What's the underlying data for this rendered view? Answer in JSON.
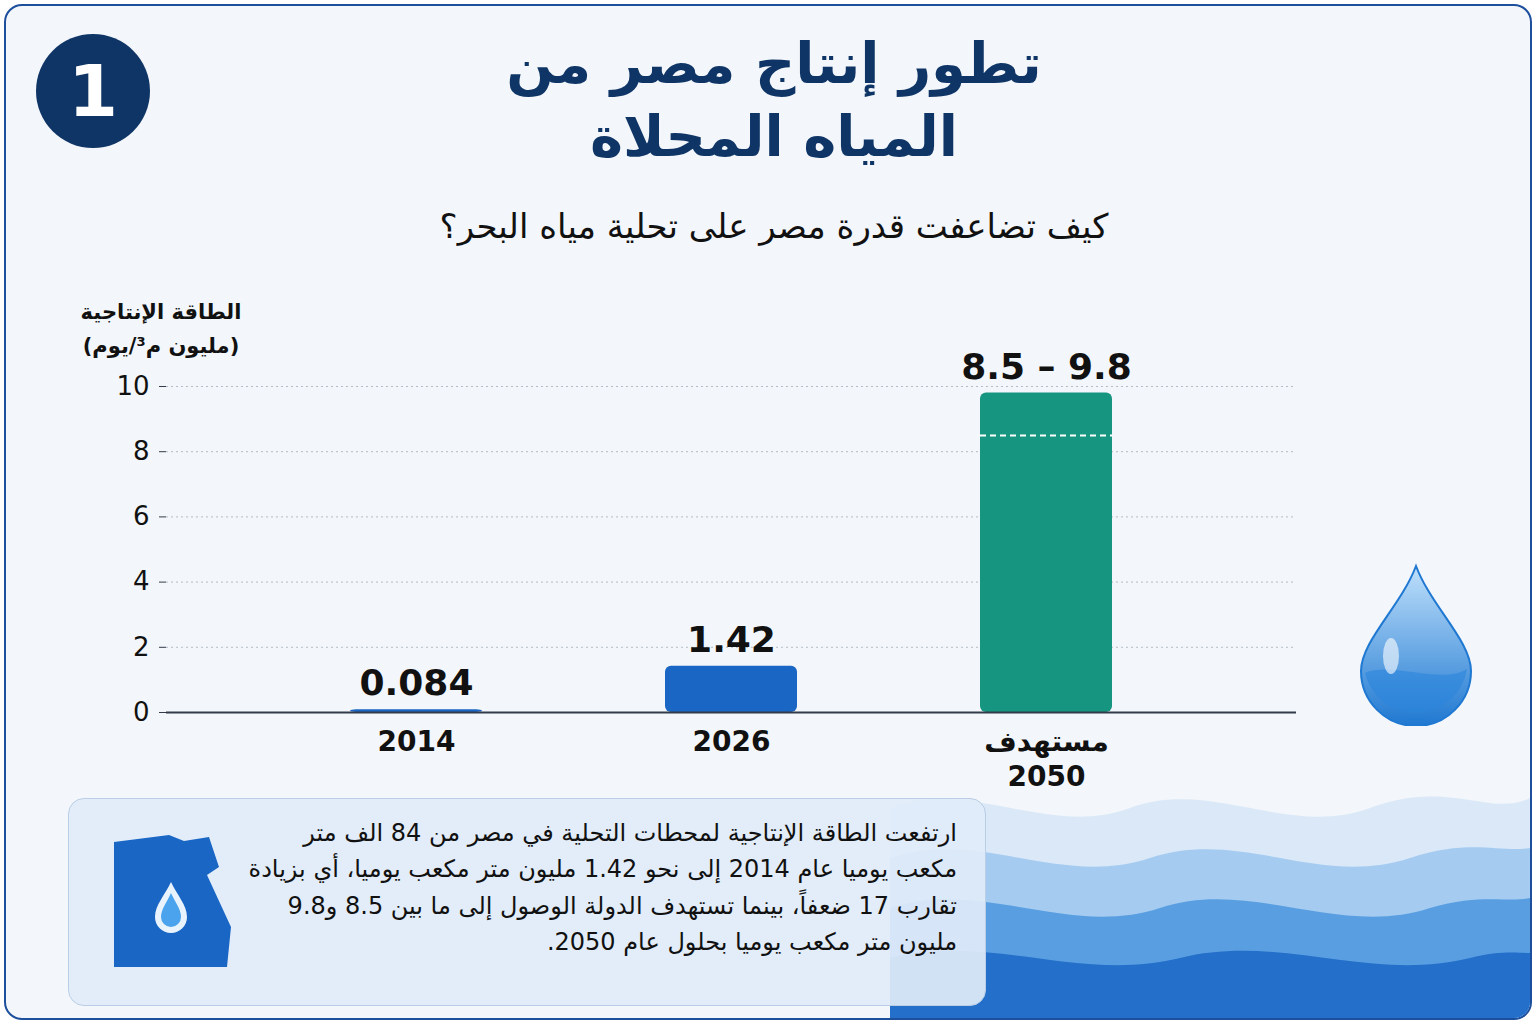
{
  "chart_data": {
    "type": "bar",
    "badge": "1",
    "title": "تطور إنتاج مصر من المياه المحلاة",
    "subtitle": "كيف تضاعفت قدرة مصر على تحلية مياه البحر؟",
    "ylabel": "الطاقة الإنتاجية (مليون م³/يوم)",
    "categories": [
      "2014",
      "2026",
      "مستهدف 2050"
    ],
    "values": [
      0.084,
      1.42,
      9.8
    ],
    "range_low": [
      null,
      null,
      8.5
    ],
    "value_labels": [
      "0.084",
      "1.42",
      "8.5 – 9.8"
    ],
    "colors": [
      "#1a66c4",
      "#1a66c4",
      "#169680"
    ],
    "ylim": [
      0,
      10
    ],
    "yticks": [
      0,
      2,
      4,
      6,
      8,
      10
    ],
    "grid": true,
    "data_labels": true,
    "annotation": "ارتفعت الطاقة الإنتاجية لمحطات التحلية في مصر من 84 الف متر مكعب يوميا عام 2014 إلى نحو 1.42 مليون متر مكعب يوميا، أي بزيادة تقارب 17 ضعفاً، بينما تستهدف الدولة الوصول إلى ما بين 8.5 و9.8 مليون متر مكعب يوميا بحلول عام 2050."
  }
}
